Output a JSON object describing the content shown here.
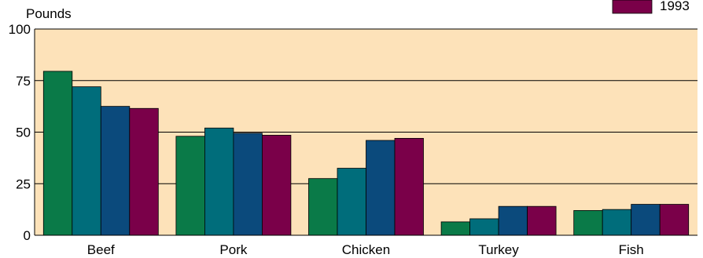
{
  "chart_data": {
    "type": "bar",
    "ylabel": "Pounds",
    "categories": [
      "Beef",
      "Pork",
      "Chicken",
      "Turkey",
      "Fish"
    ],
    "yticks": [
      0,
      25,
      50,
      75,
      100
    ],
    "ylim": [
      0,
      100
    ],
    "grid": true,
    "legend_position": "top-right",
    "plot_background": "#FDE2B9",
    "series": [
      {
        "color": "#0A7A48",
        "values": [
          79.5,
          48,
          27.5,
          6.5,
          12
        ]
      },
      {
        "color": "#006D7B",
        "values": [
          72,
          52,
          32.5,
          8,
          12.5
        ]
      },
      {
        "color": "#0B4A7C",
        "values": [
          62.5,
          49.5,
          46,
          14,
          15
        ]
      },
      {
        "name": "1993",
        "color": "#7A0049",
        "values": [
          61.5,
          48.5,
          47,
          14,
          15
        ]
      }
    ]
  }
}
